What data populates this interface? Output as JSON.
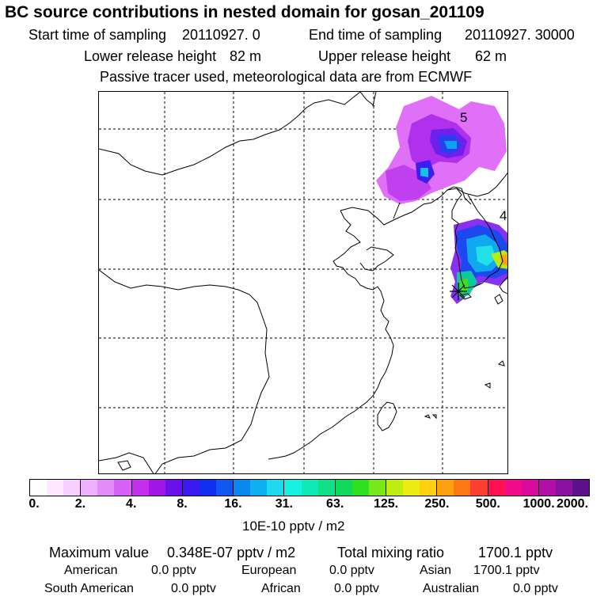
{
  "header": {
    "title": "BC  source contributions in nested domain for gosan_201109",
    "start_label": "Start time of sampling",
    "start_value": "20110927.     0",
    "end_label": "End time of sampling",
    "end_value": "20110927. 30000",
    "lower_label": "Lower release height",
    "lower_value": "82 m",
    "upper_label": "Upper release height",
    "upper_value": "62 m",
    "tracer_note": "Passive tracer used, meteorological data are from ECMWF"
  },
  "map": {
    "labels": [
      {
        "text": "5"
      },
      {
        "text": "4"
      }
    ],
    "receptor_icon": "asterisk-marker",
    "plume": [
      {
        "lon": 127,
        "lat": 45,
        "value": 4
      },
      {
        "lon": 128,
        "lat": 44,
        "value": 8
      },
      {
        "lon": 128.5,
        "lat": 44.5,
        "value": 12
      },
      {
        "lon": 126,
        "lat": 42.5,
        "value": 6
      },
      {
        "lon": 125,
        "lat": 41.5,
        "value": 3
      },
      {
        "lon": 130,
        "lat": 43,
        "value": 3
      },
      {
        "lon": 128,
        "lat": 36.8,
        "value": 30
      },
      {
        "lon": 129,
        "lat": 35.6,
        "value": 200
      },
      {
        "lon": 127.5,
        "lat": 34.5,
        "value": 90
      },
      {
        "lon": 126.5,
        "lat": 33.3,
        "value": 60
      }
    ]
  },
  "colorbar": {
    "colors": [
      "#ffffff",
      "#fce8ff",
      "#f7d0ff",
      "#eeb0ff",
      "#e48cfc",
      "#d760f5",
      "#c430ee",
      "#9f18e8",
      "#6a10e8",
      "#3a18f0",
      "#1030f0",
      "#1058f0",
      "#0a88f0",
      "#10b0f0",
      "#20d8f0",
      "#18f0e4",
      "#10e8b8",
      "#10e088",
      "#10d858",
      "#30e020",
      "#78e818",
      "#c0ec10",
      "#ecec10",
      "#ffd010",
      "#ffa010",
      "#ff7818",
      "#ff4030",
      "#ff1050",
      "#f00a8c",
      "#d80aa0",
      "#b010a8",
      "#8a10a0",
      "#60108a"
    ],
    "ticks": [
      "0.",
      "2.",
      "4.",
      "8.",
      "16.",
      "31.",
      "63.",
      "125.",
      "250.",
      "500.",
      "1000.",
      "2000."
    ],
    "unit": "10E-10 pptv / m2"
  },
  "summary": {
    "max_label": "Maximum value",
    "max_value": "0.348E-07 pptv / m2",
    "total_label": "Total mixing ratio",
    "total_value": "1700.1 pptv",
    "regions": [
      {
        "name": "American",
        "value": "0.0 pptv"
      },
      {
        "name": "European",
        "value": "0.0 pptv"
      },
      {
        "name": "Asian",
        "value": "1700.1 pptv"
      },
      {
        "name": "South American",
        "value": "0.0 pptv"
      },
      {
        "name": "African",
        "value": "0.0 pptv"
      },
      {
        "name": "Australian",
        "value": "0.0 pptv"
      }
    ]
  }
}
